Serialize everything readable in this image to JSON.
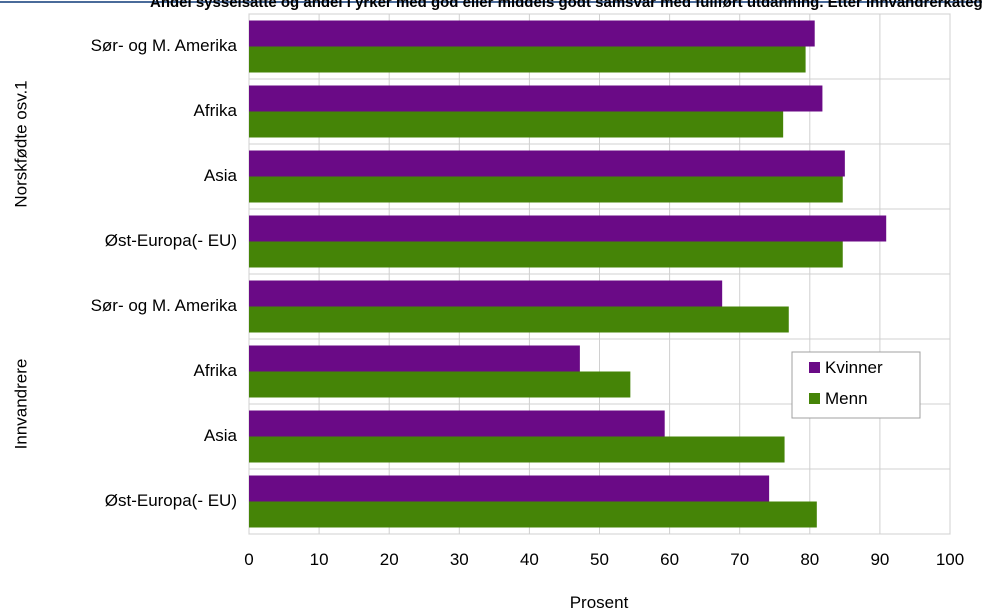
{
  "chart_data": {
    "type": "bar",
    "orientation": "horizontal",
    "title": "Andel sysselsatte og andel i yrker med god eller middels godt samsvar med fullført utdanning. Etter innvandrerkategori og landbakgrunn og kjønn. Prosent av personer med høyere utdanning.",
    "xlabel": "Prosent",
    "xlim": [
      0,
      100
    ],
    "xticks": [
      0,
      10,
      20,
      30,
      40,
      50,
      60,
      70,
      80,
      90,
      100
    ],
    "grid": true,
    "legend_position": "right",
    "groups": [
      {
        "label": "Norskfødte osv.1",
        "categories": [
          "Sør- og M. Amerika",
          "Afrika",
          "Asia",
          "Øst-Europa(- EU)"
        ]
      },
      {
        "label": "Innvandrere",
        "categories": [
          "Sør- og M. Amerika",
          "Afrika",
          "Asia",
          "Øst-Europa(- EU)"
        ]
      }
    ],
    "categories": [
      "Sør- og M. Amerika",
      "Afrika",
      "Asia",
      "Øst-Europa(- EU)",
      "Sør- og M. Amerika",
      "Afrika",
      "Asia",
      "Øst-Europa(- EU)"
    ],
    "series": [
      {
        "name": "Kvinner",
        "color": "#6a0a86",
        "values": [
          80.7,
          81.8,
          85.0,
          90.9,
          67.5,
          47.2,
          59.3,
          74.2
        ]
      },
      {
        "name": "Menn",
        "color": "#458407",
        "values": [
          79.4,
          76.2,
          84.7,
          84.7,
          77.0,
          54.4,
          76.4,
          81.0
        ]
      }
    ]
  }
}
